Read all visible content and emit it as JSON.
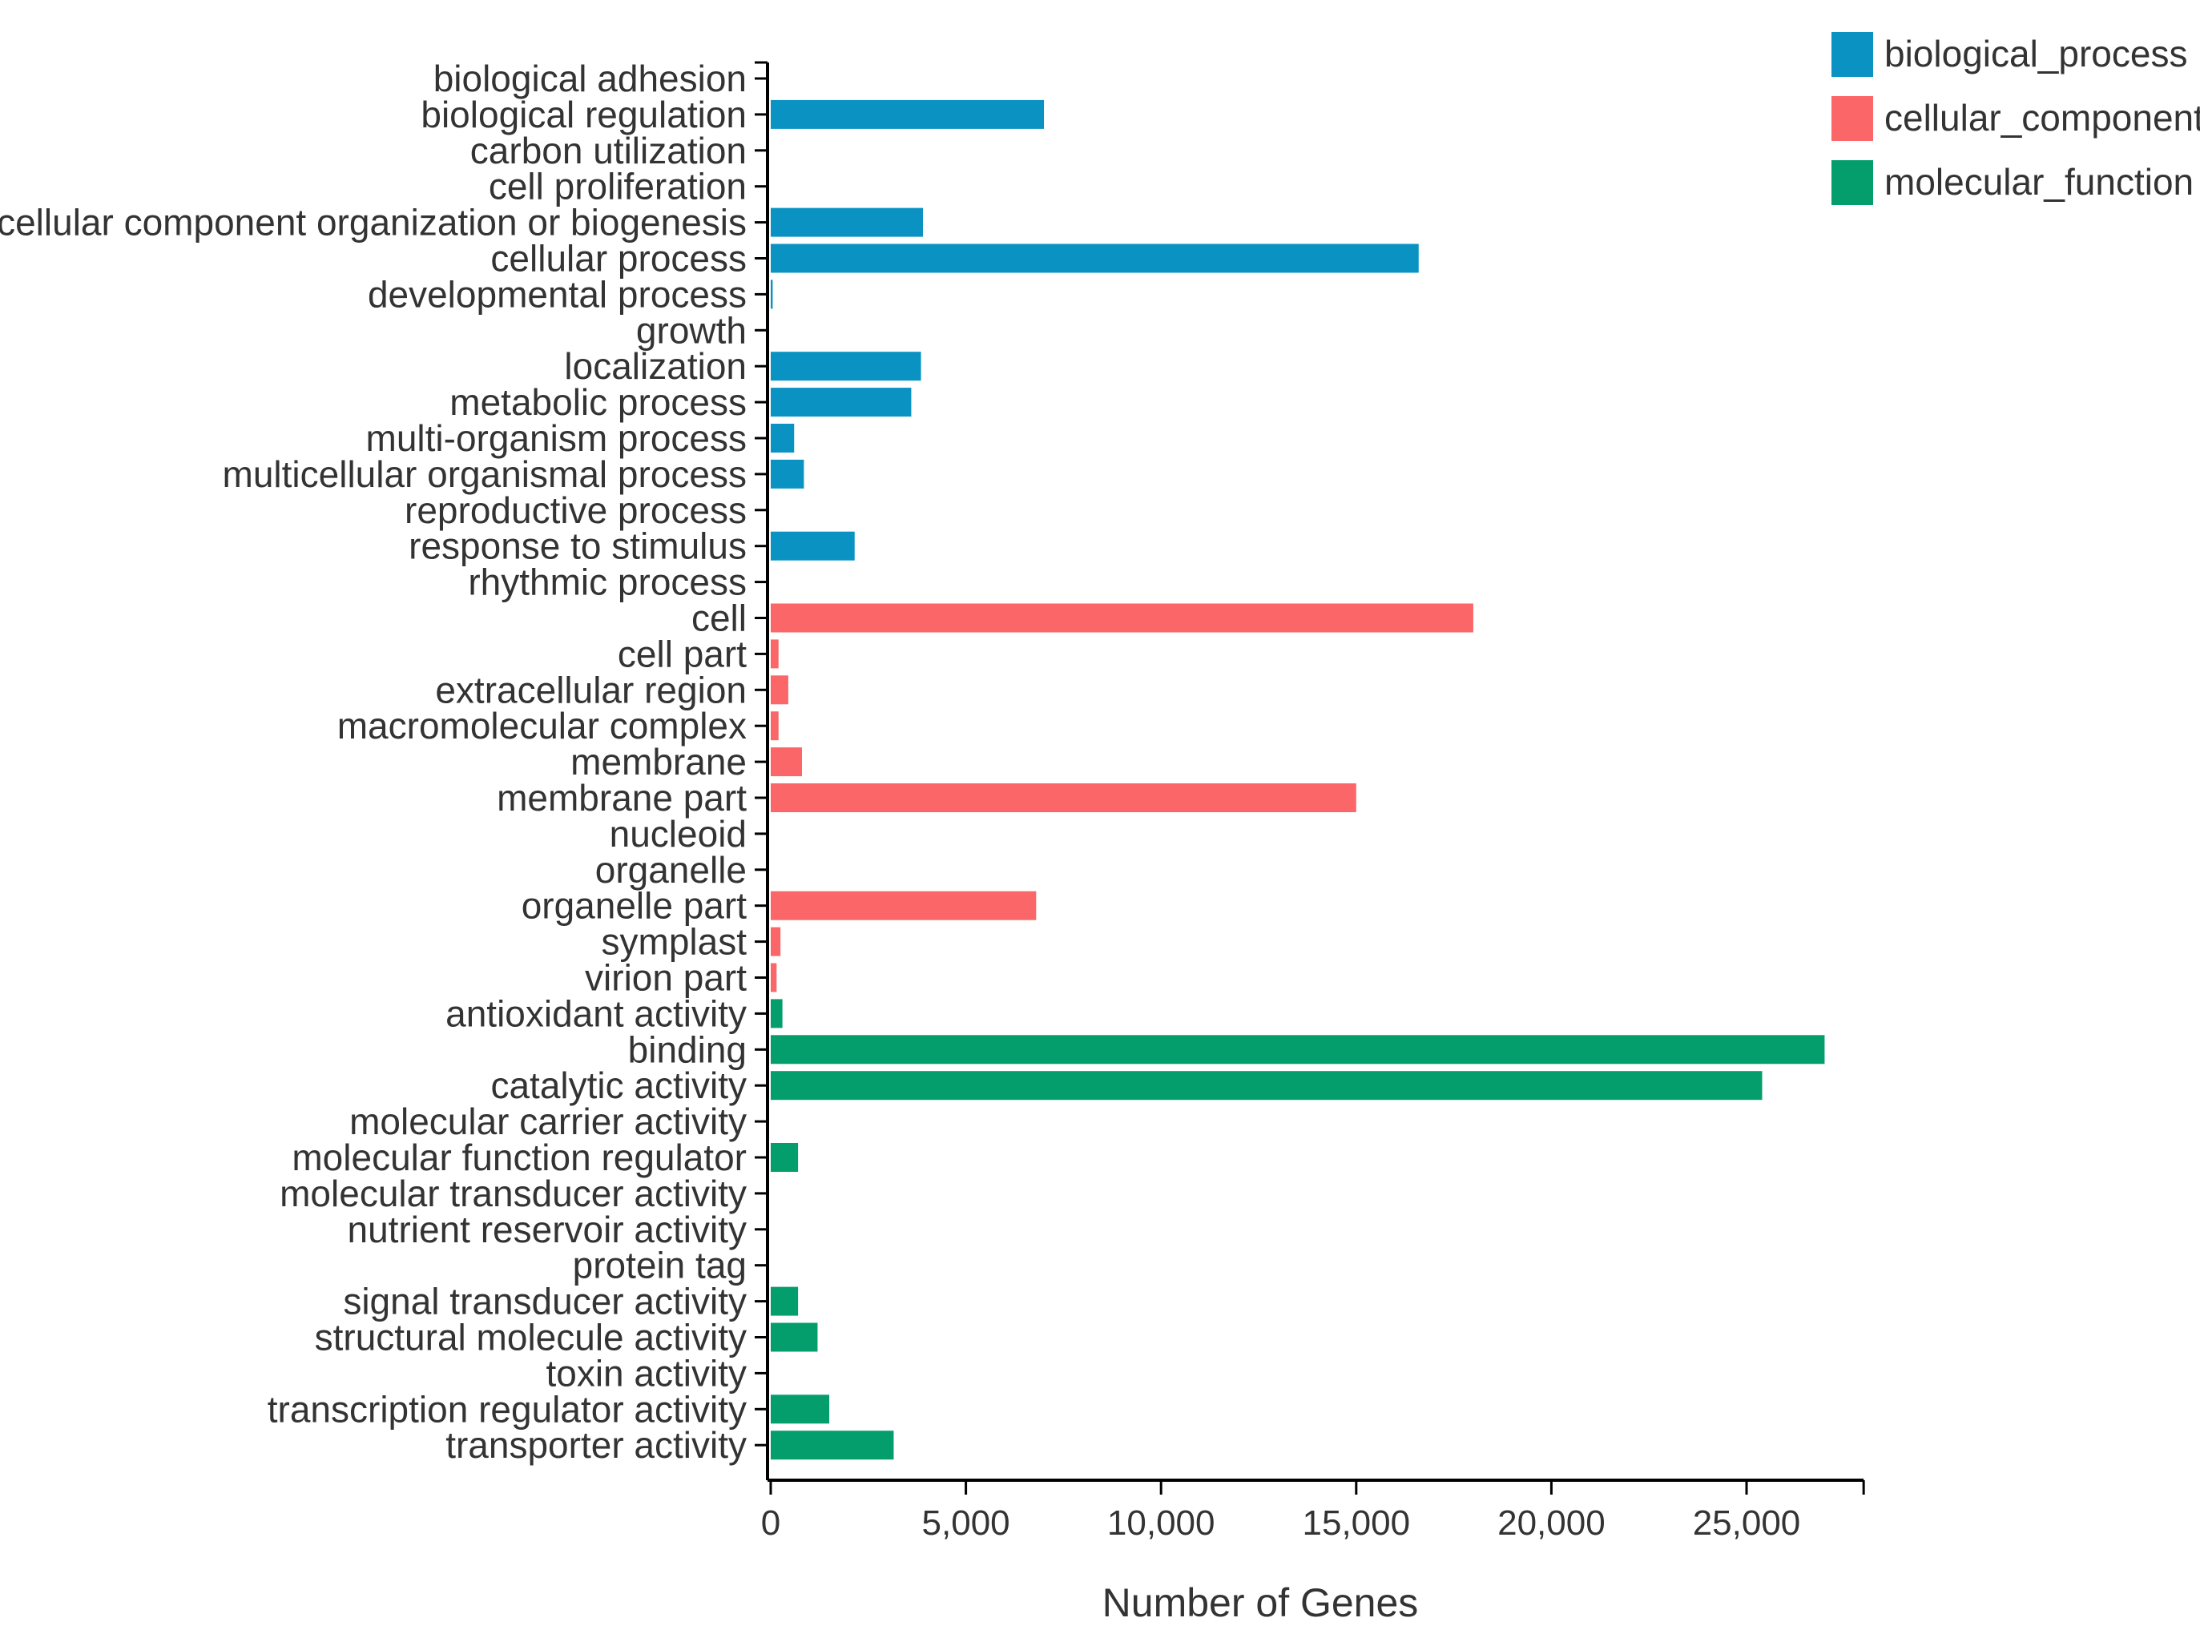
{
  "chart_data": {
    "type": "bar",
    "orientation": "horizontal",
    "title": "",
    "xlabel": "Number of Genes",
    "ylabel": "",
    "xlim": [
      0,
      28000
    ],
    "xticks": [
      0,
      5000,
      10000,
      15000,
      20000,
      25000
    ],
    "xtick_labels": [
      "0",
      "5,000",
      "10,000",
      "15,000",
      "20,000",
      "25,000"
    ],
    "legend_position": "top-right",
    "series": [
      {
        "name": "biological_process",
        "color": "#0a93c2"
      },
      {
        "name": "cellular_component",
        "color": "#fb6768"
      },
      {
        "name": "molecular_function",
        "color": "#049e6d"
      }
    ],
    "categories": [
      {
        "label": "biological adhesion",
        "value": 0,
        "series": "biological_process"
      },
      {
        "label": "biological regulation",
        "value": 7000,
        "series": "biological_process"
      },
      {
        "label": "carbon utilization",
        "value": 0,
        "series": "biological_process"
      },
      {
        "label": "cell proliferation",
        "value": 0,
        "series": "biological_process"
      },
      {
        "label": "cellular component organization or biogenesis",
        "value": 3900,
        "series": "biological_process"
      },
      {
        "label": "cellular process",
        "value": 16600,
        "series": "biological_process"
      },
      {
        "label": "developmental process",
        "value": 50,
        "series": "biological_process"
      },
      {
        "label": "growth",
        "value": 0,
        "series": "biological_process"
      },
      {
        "label": "localization",
        "value": 3850,
        "series": "biological_process"
      },
      {
        "label": "metabolic process",
        "value": 3600,
        "series": "biological_process"
      },
      {
        "label": "multi-organism process",
        "value": 600,
        "series": "biological_process"
      },
      {
        "label": "multicellular organismal process",
        "value": 850,
        "series": "biological_process"
      },
      {
        "label": "reproductive process",
        "value": 0,
        "series": "biological_process"
      },
      {
        "label": "response to stimulus",
        "value": 2150,
        "series": "biological_process"
      },
      {
        "label": "rhythmic process",
        "value": 0,
        "series": "biological_process"
      },
      {
        "label": "cell",
        "value": 18000,
        "series": "cellular_component"
      },
      {
        "label": "cell part",
        "value": 200,
        "series": "cellular_component"
      },
      {
        "label": "extracellular region",
        "value": 450,
        "series": "cellular_component"
      },
      {
        "label": "macromolecular complex",
        "value": 200,
        "series": "cellular_component"
      },
      {
        "label": "membrane",
        "value": 800,
        "series": "cellular_component"
      },
      {
        "label": "membrane part",
        "value": 15000,
        "series": "cellular_component"
      },
      {
        "label": "nucleoid",
        "value": 0,
        "series": "cellular_component"
      },
      {
        "label": "organelle",
        "value": 0,
        "series": "cellular_component"
      },
      {
        "label": "organelle part",
        "value": 6800,
        "series": "cellular_component"
      },
      {
        "label": "symplast",
        "value": 250,
        "series": "cellular_component"
      },
      {
        "label": "virion part",
        "value": 150,
        "series": "cellular_component"
      },
      {
        "label": "antioxidant activity",
        "value": 300,
        "series": "molecular_function"
      },
      {
        "label": "binding",
        "value": 27000,
        "series": "molecular_function"
      },
      {
        "label": "catalytic activity",
        "value": 25400,
        "series": "molecular_function"
      },
      {
        "label": "molecular carrier activity",
        "value": 0,
        "series": "molecular_function"
      },
      {
        "label": "molecular function regulator",
        "value": 700,
        "series": "molecular_function"
      },
      {
        "label": "molecular transducer activity",
        "value": 0,
        "series": "molecular_function"
      },
      {
        "label": "nutrient reservoir activity",
        "value": 0,
        "series": "molecular_function"
      },
      {
        "label": "protein tag",
        "value": 0,
        "series": "molecular_function"
      },
      {
        "label": "signal transducer activity",
        "value": 700,
        "series": "molecular_function"
      },
      {
        "label": "structural molecule activity",
        "value": 1200,
        "series": "molecular_function"
      },
      {
        "label": "toxin activity",
        "value": 0,
        "series": "molecular_function"
      },
      {
        "label": "transcription regulator activity",
        "value": 1500,
        "series": "molecular_function"
      },
      {
        "label": "transporter activity",
        "value": 3150,
        "series": "molecular_function"
      }
    ]
  }
}
